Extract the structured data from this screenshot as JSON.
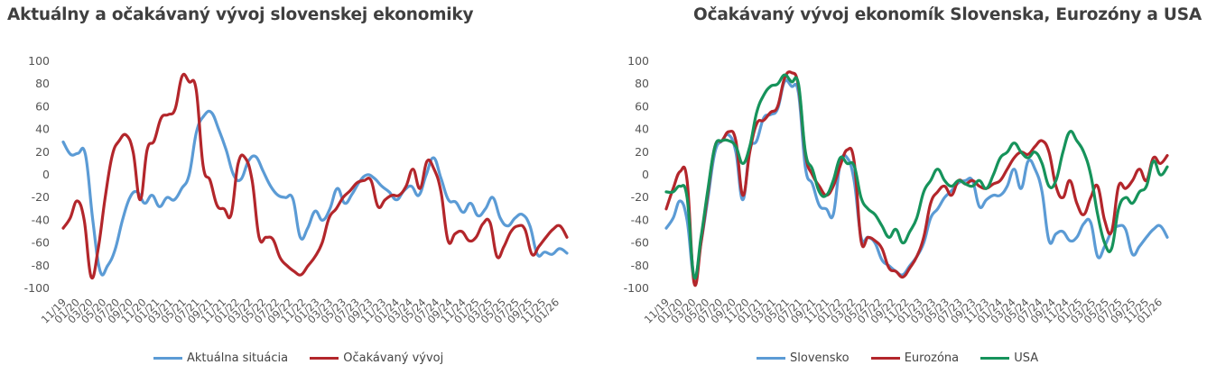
{
  "chart_data": [
    {
      "type": "line",
      "title": "Aktuálny a očakávaný vývoj slovenskej ekonomiky",
      "ylim": [
        -100,
        100
      ],
      "yticks": [
        100,
        80,
        60,
        40,
        20,
        0,
        -20,
        -40,
        -60,
        -80,
        -100
      ],
      "x_tick_labels": [
        "11/19",
        "01/20",
        "03/20",
        "05/20",
        "07/20",
        "09/20",
        "11/20",
        "01/21",
        "03/21",
        "05/21",
        "07/21",
        "09/21",
        "11/21",
        "01/22",
        "03/22",
        "05/22",
        "07/22",
        "09/22",
        "11/22",
        "01/23",
        "03/23",
        "05/23",
        "07/23",
        "09/23",
        "11/23",
        "01/24",
        "03/24",
        "05/24",
        "07/24",
        "09/24",
        "11/24",
        "01/25",
        "03/25",
        "05/25",
        "07/25",
        "09/25",
        "11/25",
        "01/26"
      ],
      "grid": false,
      "legend_position": "bottom",
      "series": [
        {
          "name": "Aktuálna situácia",
          "color": "#5b9bd5",
          "values": [
            29,
            18,
            19,
            18,
            -40,
            -85,
            -80,
            -66,
            -40,
            -20,
            -15,
            -25,
            -18,
            -28,
            -20,
            -22,
            -12,
            0,
            38,
            52,
            55,
            40,
            22,
            0,
            -4,
            12,
            16,
            3,
            -10,
            -18,
            -20,
            -21,
            -55,
            -47,
            -32,
            -40,
            -30,
            -12,
            -25,
            -17,
            -6,
            0,
            -3,
            -10,
            -15,
            -22,
            -14,
            -10,
            -18,
            0,
            15,
            -3,
            -22,
            -24,
            -33,
            -25,
            -36,
            -30,
            -20,
            -38,
            -45,
            -38,
            -35,
            -45,
            -70,
            -68,
            -70,
            -65,
            -69
          ]
        },
        {
          "name": "Očakávaný vývoj",
          "color": "#b3262b",
          "values": [
            -47,
            -38,
            -23,
            -40,
            -90,
            -65,
            -20,
            17,
            30,
            35,
            20,
            -22,
            22,
            30,
            50,
            53,
            58,
            87,
            82,
            75,
            8,
            -5,
            -27,
            -30,
            -35,
            10,
            15,
            -5,
            -55,
            -55,
            -57,
            -73,
            -80,
            -85,
            -88,
            -80,
            -72,
            -60,
            -38,
            -30,
            -20,
            -14,
            -7,
            -5,
            -5,
            -28,
            -22,
            -18,
            -18,
            -10,
            5,
            -12,
            12,
            5,
            -15,
            -58,
            -52,
            -50,
            -58,
            -55,
            -43,
            -42,
            -72,
            -63,
            -50,
            -45,
            -48,
            -70,
            -63,
            -55,
            -48,
            -45,
            -55
          ]
        }
      ]
    },
    {
      "type": "line",
      "title": "Očakávaný vývoj ekonomík Slovenska, Eurozóny a USA",
      "ylim": [
        -100,
        100
      ],
      "yticks": [
        100,
        80,
        60,
        40,
        20,
        0,
        -20,
        -40,
        -60,
        -80,
        -100
      ],
      "x_tick_labels": [
        "11/19",
        "01/20",
        "03/20",
        "05/20",
        "07/20",
        "09/20",
        "11/20",
        "01/21",
        "03/21",
        "05/21",
        "07/21",
        "09/21",
        "11/21",
        "01/22",
        "03/22",
        "05/22",
        "07/22",
        "09/22",
        "11/22",
        "01/23",
        "03/23",
        "05/23",
        "07/23",
        "09/23",
        "11/23",
        "01/24",
        "03/24",
        "05/24",
        "07/24",
        "09/24",
        "11/24",
        "01/25",
        "03/25",
        "05/25",
        "07/25",
        "09/25",
        "11/25",
        "01/26"
      ],
      "grid": false,
      "legend_position": "bottom",
      "series": [
        {
          "name": "Slovensko",
          "color": "#5b9bd5",
          "values": [
            -47,
            -38,
            -23,
            -40,
            -90,
            -60,
            -20,
            20,
            30,
            35,
            20,
            -22,
            22,
            30,
            50,
            53,
            58,
            82,
            78,
            72,
            6,
            -8,
            -27,
            -30,
            -35,
            10,
            15,
            -5,
            -55,
            -55,
            -60,
            -75,
            -80,
            -85,
            -88,
            -80,
            -72,
            -60,
            -38,
            -30,
            -20,
            -14,
            -7,
            -5,
            -5,
            -28,
            -22,
            -18,
            -18,
            -10,
            5,
            -12,
            12,
            5,
            -15,
            -58,
            -52,
            -50,
            -58,
            -55,
            -43,
            -42,
            -72,
            -63,
            -50,
            -45,
            -48,
            -70,
            -63,
            -55,
            -48,
            -45,
            -55
          ]
        },
        {
          "name": "Eurozóna",
          "color": "#b3262b",
          "values": [
            -30,
            -12,
            3,
            -5,
            -95,
            -60,
            -15,
            25,
            30,
            38,
            30,
            -18,
            20,
            45,
            48,
            55,
            60,
            85,
            90,
            78,
            18,
            0,
            -10,
            -18,
            -10,
            8,
            22,
            12,
            -58,
            -55,
            -58,
            -65,
            -82,
            -85,
            -90,
            -82,
            -72,
            -55,
            -25,
            -15,
            -10,
            -18,
            -5,
            -8,
            -5,
            -10,
            -12,
            -8,
            -5,
            5,
            15,
            20,
            18,
            25,
            30,
            20,
            -10,
            -20,
            -5,
            -25,
            -35,
            -20,
            -10,
            -40,
            -50,
            -10,
            -12,
            -5,
            5,
            -5,
            15,
            10,
            17
          ]
        },
        {
          "name": "USA",
          "color": "#16935b",
          "values": [
            -15,
            -15,
            -10,
            -20,
            -90,
            -55,
            -12,
            25,
            30,
            30,
            25,
            10,
            25,
            55,
            70,
            78,
            80,
            88,
            82,
            80,
            20,
            5,
            -15,
            -18,
            -5,
            15,
            10,
            8,
            -20,
            -30,
            -35,
            -45,
            -55,
            -48,
            -60,
            -50,
            -38,
            -15,
            -5,
            5,
            -5,
            -10,
            -5,
            -8,
            -10,
            -5,
            -12,
            0,
            15,
            20,
            28,
            20,
            15,
            20,
            10,
            -10,
            -5,
            20,
            38,
            30,
            20,
            0,
            -35,
            -60,
            -65,
            -30,
            -20,
            -25,
            -15,
            -10,
            12,
            0,
            7
          ]
        }
      ]
    }
  ]
}
